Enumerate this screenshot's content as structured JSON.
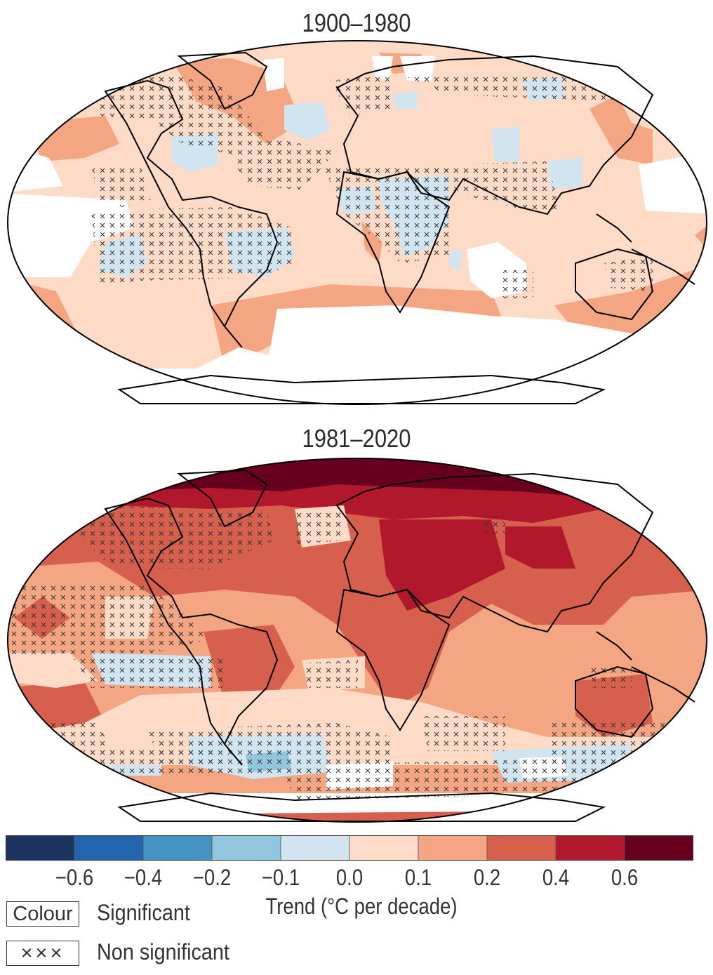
{
  "panels": [
    {
      "title": "1900–1980",
      "background_class": "0.0 to 0.1 °C per decade"
    },
    {
      "title": "1981–2020",
      "background_class": "0.2 to 0.4 °C per decade"
    }
  ],
  "colorbar": {
    "label": "Trend (°C per decade)",
    "ticks": [
      "−0.6",
      "−0.4",
      "−0.2",
      "−0.1",
      "0.0",
      "0.1",
      "0.2",
      "0.4",
      "0.6"
    ],
    "colors": [
      "#1c3461",
      "#2166ac",
      "#4393c3",
      "#92c5de",
      "#d1e5f0",
      "#fddbc7",
      "#f4a582",
      "#d6604d",
      "#b2182b",
      "#67001f"
    ]
  },
  "legend": {
    "colour_box": "Colour",
    "colour_label": "Significant",
    "cross_box": "×××",
    "cross_label": "Non significant"
  },
  "map_colors": {
    "no_data": "#ffffff",
    "outline": "#000000",
    "coastline": "#000000"
  }
}
